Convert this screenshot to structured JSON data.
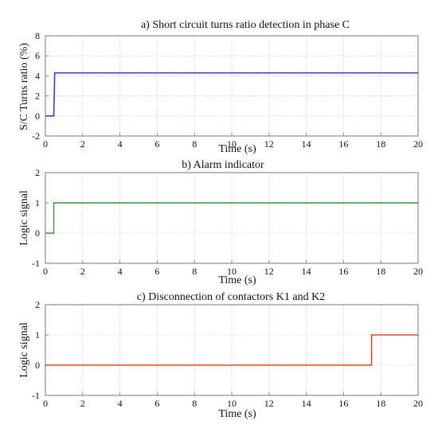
{
  "chart_data": [
    {
      "type": "line",
      "title": "a) Short circuit turns ratio  detection in phase C",
      "xlabel": "Time (s)",
      "ylabel": "S/C Turns ratio (%)",
      "xlim": [
        0,
        20
      ],
      "ylim": [
        -2,
        8
      ],
      "xticks": [
        "0",
        "2",
        "4",
        "6",
        "8",
        "10",
        "12",
        "14",
        "16",
        "18",
        "20"
      ],
      "yticks": [
        "-2",
        "0",
        "2",
        "4",
        "6",
        "8"
      ],
      "grid": true,
      "color": "#2b35c8",
      "series": [
        {
          "x": [
            0,
            0.45,
            0.5,
            20
          ],
          "y": [
            0,
            0,
            4.3,
            4.3
          ]
        }
      ]
    },
    {
      "type": "line",
      "title": "b) Alarm indicator",
      "xlabel": "Time (s)",
      "ylabel": "Logic signal",
      "xlim": [
        0,
        20
      ],
      "ylim": [
        -1,
        2
      ],
      "xticks": [
        "0",
        "2",
        "4",
        "6",
        "8",
        "10",
        "12",
        "14",
        "16",
        "18",
        "20"
      ],
      "yticks": [
        "-1",
        "0",
        "1",
        "2"
      ],
      "grid": true,
      "color": "#2e9a2e",
      "series": [
        {
          "x": [
            0,
            0.45,
            0.45,
            20
          ],
          "y": [
            0,
            0,
            1,
            1
          ]
        }
      ]
    },
    {
      "type": "line",
      "title": "c) Disconnection of contactors K1 and K2",
      "xlabel": "Time (s)",
      "ylabel": "Logic signal",
      "xlim": [
        0,
        20
      ],
      "ylim": [
        -1,
        2
      ],
      "xticks": [
        "0",
        "2",
        "4",
        "6",
        "8",
        "10",
        "12",
        "14",
        "16",
        "18",
        "20"
      ],
      "yticks": [
        "-1",
        "0",
        "1",
        "2"
      ],
      "grid": true,
      "color": "#e2462a",
      "series": [
        {
          "x": [
            0,
            17.5,
            17.5,
            20
          ],
          "y": [
            0,
            0,
            1,
            1
          ]
        }
      ]
    }
  ]
}
